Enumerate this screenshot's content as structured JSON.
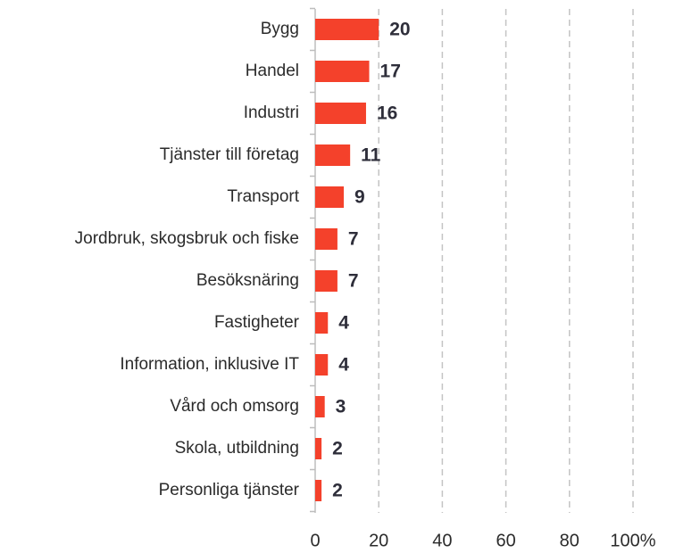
{
  "chart_data": {
    "type": "bar",
    "orientation": "horizontal",
    "categories": [
      "Bygg",
      "Handel",
      "Industri",
      "Tjänster till företag",
      "Transport",
      "Jordbruk, skogsbruk och fiske",
      "Besöksnäring",
      "Fastigheter",
      "Information, inklusive IT",
      "Vård och omsorg",
      "Skola, utbildning",
      "Personliga tjänster"
    ],
    "values": [
      20,
      17,
      16,
      11,
      9,
      7,
      7,
      4,
      4,
      3,
      2,
      2
    ],
    "color": "#f4412b",
    "xlim": [
      0,
      100
    ],
    "xticks": [
      0,
      20,
      40,
      60,
      80,
      {
        "value": 100,
        "label": "100%"
      }
    ],
    "grid": true
  }
}
